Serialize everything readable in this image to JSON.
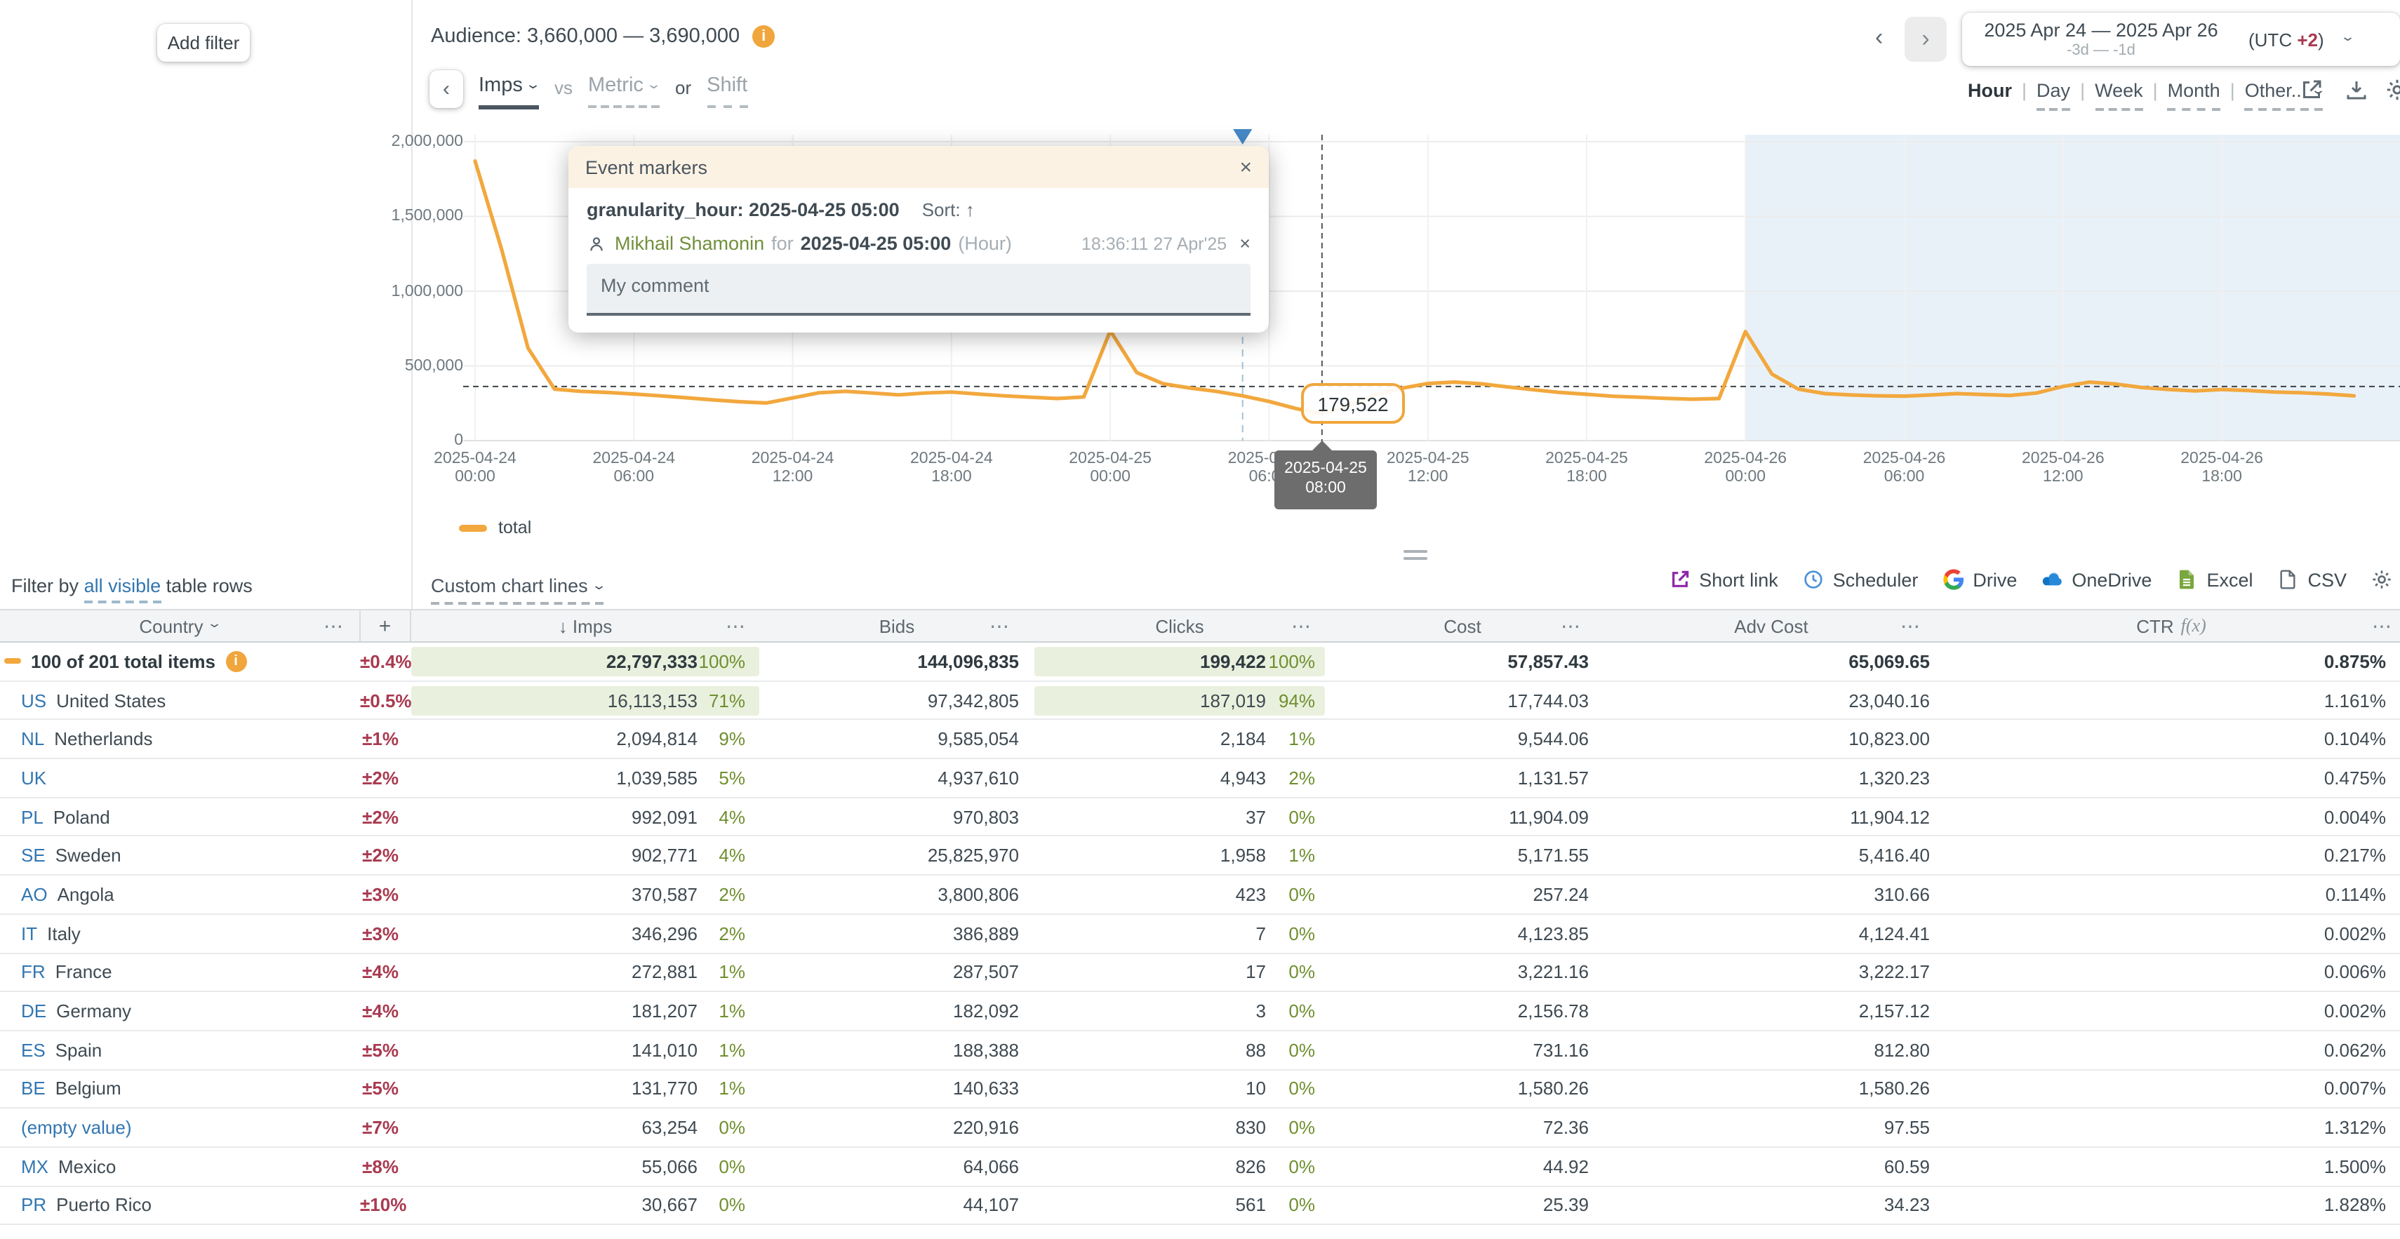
{
  "left_panel": {
    "add_filter": "Add filter"
  },
  "chart_header": {
    "audience": "Audience: 3,660,000 — 3,690,000",
    "back": "‹",
    "metric_primary": "Imps",
    "vs": "vs",
    "metric_secondary": "Metric",
    "or": "or",
    "shift": "Shift"
  },
  "date_nav": {
    "prev": "‹",
    "next": "›",
    "range": "2025 Apr 24 — 2025 Apr 26",
    "relative": "-3d — -1d",
    "utc_prefix": "(UTC ",
    "utc_value": "+2",
    "utc_suffix": ")",
    "chevron": "⌄"
  },
  "granularity": {
    "active": "Hour",
    "sep": "|",
    "options": [
      "Day",
      "Week",
      "Month",
      "Other..."
    ]
  },
  "event_popup": {
    "title": "Event markers",
    "close": "×",
    "subject": "granularity_hour: 2025-04-25 05:00",
    "sort_label": "Sort:",
    "sort_arrow": "↑",
    "author": "Mikhail Shamonin",
    "for_word": "for",
    "target": "2025-04-25 05:00",
    "target_unit": "(Hour)",
    "timestamp": "18:36:11 27 Apr'25",
    "entry_close": "×",
    "comment": "My comment"
  },
  "tooltip": {
    "value": "179,522",
    "date": "2025-04-25",
    "time": "08:00"
  },
  "legend": {
    "label": "total"
  },
  "chart_data": {
    "type": "line",
    "series_name": "total",
    "unit": "Imps",
    "line_color": "#f2a83e",
    "highlight_color": "#e9f1f8",
    "ylim": [
      0,
      2000000
    ],
    "y_ticks": [
      "2,000,000",
      "1,500,000",
      "1,000,000",
      "500,000",
      "0"
    ],
    "x_ticks": [
      {
        "date": "2025-04-24",
        "time": "00:00"
      },
      {
        "date": "2025-04-24",
        "time": "06:00"
      },
      {
        "date": "2025-04-24",
        "time": "12:00"
      },
      {
        "date": "2025-04-24",
        "time": "18:00"
      },
      {
        "date": "2025-04-25",
        "time": "00:00"
      },
      {
        "date": "2025-04-25",
        "time": "06:00"
      },
      {
        "date": "2025-04-25",
        "time": "12:00"
      },
      {
        "date": "2025-04-25",
        "time": "18:00"
      },
      {
        "date": "2025-04-26",
        "time": "00:00"
      },
      {
        "date": "2025-04-26",
        "time": "06:00"
      },
      {
        "date": "2025-04-26",
        "time": "12:00"
      },
      {
        "date": "2025-04-26",
        "time": "18:00"
      }
    ],
    "values": [
      1870000,
      1280000,
      620000,
      345000,
      330000,
      322000,
      312000,
      300000,
      286000,
      272000,
      260000,
      252000,
      285000,
      320000,
      330000,
      318000,
      306000,
      318000,
      325000,
      312000,
      300000,
      290000,
      282000,
      292000,
      735000,
      455000,
      380000,
      352000,
      330000,
      300000,
      262000,
      215000,
      179522,
      230000,
      305000,
      350000,
      382000,
      392000,
      380000,
      360000,
      340000,
      322000,
      310000,
      297000,
      290000,
      283000,
      277000,
      282000,
      730000,
      445000,
      345000,
      315000,
      305000,
      300000,
      298000,
      305000,
      315000,
      308000,
      302000,
      318000,
      362000,
      392000,
      378000,
      355000,
      342000,
      332000,
      342000,
      335000,
      325000,
      320000,
      312000,
      300000
    ],
    "avg_line": 362000,
    "highlight_from_hour": 48,
    "event_marker_hour": 29,
    "hover_hour": 32,
    "hover_value": 179522,
    "grid": true,
    "legend_position": "bottom-left"
  },
  "toolbar": {
    "filter_prefix": "Filter by",
    "filter_link": "all visible",
    "filter_suffix": "table rows",
    "custom_lines": "Custom chart lines",
    "exports": [
      "Short link",
      "Scheduler",
      "Drive",
      "OneDrive",
      "Excel",
      "CSV"
    ]
  },
  "table": {
    "headers": {
      "country": "Country",
      "menu": "⋯",
      "plus": "+",
      "imps": "↓ Imps",
      "bids": "Bids",
      "clicks": "Clicks",
      "cost": "Cost",
      "adv_cost": "Adv Cost",
      "ctr": "CTR",
      "ctr_fn": "f(x)"
    },
    "totals": {
      "label": "100 of 201 total items",
      "delta": "±0.4%",
      "imps": "22,797,333",
      "imps_pct": "100%",
      "bids": "144,096,835",
      "clicks": "199,422",
      "clicks_pct": "100%",
      "cost": "57,857.43",
      "adv_cost": "65,069.65",
      "ctr": "0.875%"
    },
    "rows": [
      {
        "code": "US",
        "name": "United States",
        "delta": "±0.5%",
        "imps": "16,113,153",
        "imps_pct": "71%",
        "bids": "97,342,805",
        "clicks": "187,019",
        "clicks_pct": "94%",
        "cost": "17,744.03",
        "adv_cost": "23,040.16",
        "ctr": "1.161%",
        "chip": true
      },
      {
        "code": "NL",
        "name": "Netherlands",
        "delta": "±1%",
        "imps": "2,094,814",
        "imps_pct": "9%",
        "bids": "9,585,054",
        "clicks": "2,184",
        "clicks_pct": "1%",
        "cost": "9,544.06",
        "adv_cost": "10,823.00",
        "ctr": "0.104%"
      },
      {
        "code": "UK",
        "name": "",
        "delta": "±2%",
        "imps": "1,039,585",
        "imps_pct": "5%",
        "bids": "4,937,610",
        "clicks": "4,943",
        "clicks_pct": "2%",
        "cost": "1,131.57",
        "adv_cost": "1,320.23",
        "ctr": "0.475%"
      },
      {
        "code": "PL",
        "name": "Poland",
        "delta": "±2%",
        "imps": "992,091",
        "imps_pct": "4%",
        "bids": "970,803",
        "clicks": "37",
        "clicks_pct": "0%",
        "cost": "11,904.09",
        "adv_cost": "11,904.12",
        "ctr": "0.004%"
      },
      {
        "code": "SE",
        "name": "Sweden",
        "delta": "±2%",
        "imps": "902,771",
        "imps_pct": "4%",
        "bids": "25,825,970",
        "clicks": "1,958",
        "clicks_pct": "1%",
        "cost": "5,171.55",
        "adv_cost": "5,416.40",
        "ctr": "0.217%"
      },
      {
        "code": "AO",
        "name": "Angola",
        "delta": "±3%",
        "imps": "370,587",
        "imps_pct": "2%",
        "bids": "3,800,806",
        "clicks": "423",
        "clicks_pct": "0%",
        "cost": "257.24",
        "adv_cost": "310.66",
        "ctr": "0.114%"
      },
      {
        "code": "IT",
        "name": "Italy",
        "delta": "±3%",
        "imps": "346,296",
        "imps_pct": "2%",
        "bids": "386,889",
        "clicks": "7",
        "clicks_pct": "0%",
        "cost": "4,123.85",
        "adv_cost": "4,124.41",
        "ctr": "0.002%"
      },
      {
        "code": "FR",
        "name": "France",
        "delta": "±4%",
        "imps": "272,881",
        "imps_pct": "1%",
        "bids": "287,507",
        "clicks": "17",
        "clicks_pct": "0%",
        "cost": "3,221.16",
        "adv_cost": "3,222.17",
        "ctr": "0.006%"
      },
      {
        "code": "DE",
        "name": "Germany",
        "delta": "±4%",
        "imps": "181,207",
        "imps_pct": "1%",
        "bids": "182,092",
        "clicks": "3",
        "clicks_pct": "0%",
        "cost": "2,156.78",
        "adv_cost": "2,157.12",
        "ctr": "0.002%"
      },
      {
        "code": "ES",
        "name": "Spain",
        "delta": "±5%",
        "imps": "141,010",
        "imps_pct": "1%",
        "bids": "188,388",
        "clicks": "88",
        "clicks_pct": "0%",
        "cost": "731.16",
        "adv_cost": "812.80",
        "ctr": "0.062%"
      },
      {
        "code": "BE",
        "name": "Belgium",
        "delta": "±5%",
        "imps": "131,770",
        "imps_pct": "1%",
        "bids": "140,633",
        "clicks": "10",
        "clicks_pct": "0%",
        "cost": "1,580.26",
        "adv_cost": "1,580.26",
        "ctr": "0.007%"
      },
      {
        "code": "",
        "name": "(empty value)",
        "delta": "±7%",
        "imps": "63,254",
        "imps_pct": "0%",
        "bids": "220,916",
        "clicks": "830",
        "clicks_pct": "0%",
        "cost": "72.36",
        "adv_cost": "97.55",
        "ctr": "1.312%"
      },
      {
        "code": "MX",
        "name": "Mexico",
        "delta": "±8%",
        "imps": "55,066",
        "imps_pct": "0%",
        "bids": "64,066",
        "clicks": "826",
        "clicks_pct": "0%",
        "cost": "44.92",
        "adv_cost": "60.59",
        "ctr": "1.500%"
      },
      {
        "code": "PR",
        "name": "Puerto Rico",
        "delta": "±10%",
        "imps": "30,667",
        "imps_pct": "0%",
        "bids": "44,107",
        "clicks": "561",
        "clicks_pct": "0%",
        "cost": "25.39",
        "adv_cost": "34.23",
        "ctr": "1.828%"
      }
    ]
  }
}
